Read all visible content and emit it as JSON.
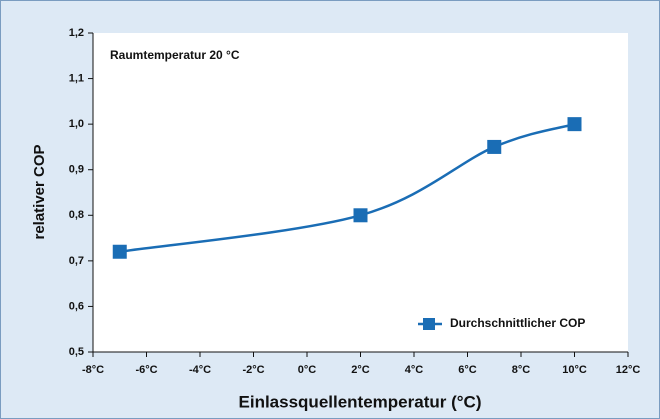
{
  "chart_data": {
    "type": "line",
    "annotation": "Raumtemperatur 20 °C",
    "xlabel": "Einlassquellentemperatur (°C)",
    "ylabel": "relativer COP",
    "x": [
      -7,
      2,
      7,
      10
    ],
    "series": [
      {
        "name": "Durchschnittlicher COP",
        "color": "#1a6db5",
        "values": [
          0.72,
          0.8,
          0.95,
          1.0
        ]
      }
    ],
    "xlim": [
      -8,
      12
    ],
    "xticks": [
      {
        "value": -8,
        "label": "-8°C"
      },
      {
        "value": -6,
        "label": "-6°C"
      },
      {
        "value": -4,
        "label": "-4°C"
      },
      {
        "value": -2,
        "label": "-2°C"
      },
      {
        "value": 0,
        "label": "0°C"
      },
      {
        "value": 2,
        "label": "2°C"
      },
      {
        "value": 4,
        "label": "4°C"
      },
      {
        "value": 6,
        "label": "6°C"
      },
      {
        "value": 8,
        "label": "8°C"
      },
      {
        "value": 10,
        "label": "10°C"
      },
      {
        "value": 12,
        "label": "12°C"
      }
    ],
    "ylim": [
      0.5,
      1.2
    ],
    "yticks": [
      {
        "value": 0.5,
        "label": "0,5"
      },
      {
        "value": 0.6,
        "label": "0,6"
      },
      {
        "value": 0.7,
        "label": "0,7"
      },
      {
        "value": 0.8,
        "label": "0,8"
      },
      {
        "value": 0.9,
        "label": "0,9"
      },
      {
        "value": 1.0,
        "label": "1,0"
      },
      {
        "value": 1.1,
        "label": "1,1"
      },
      {
        "value": 1.2,
        "label": "1,2"
      }
    ],
    "legend": "lower right"
  }
}
